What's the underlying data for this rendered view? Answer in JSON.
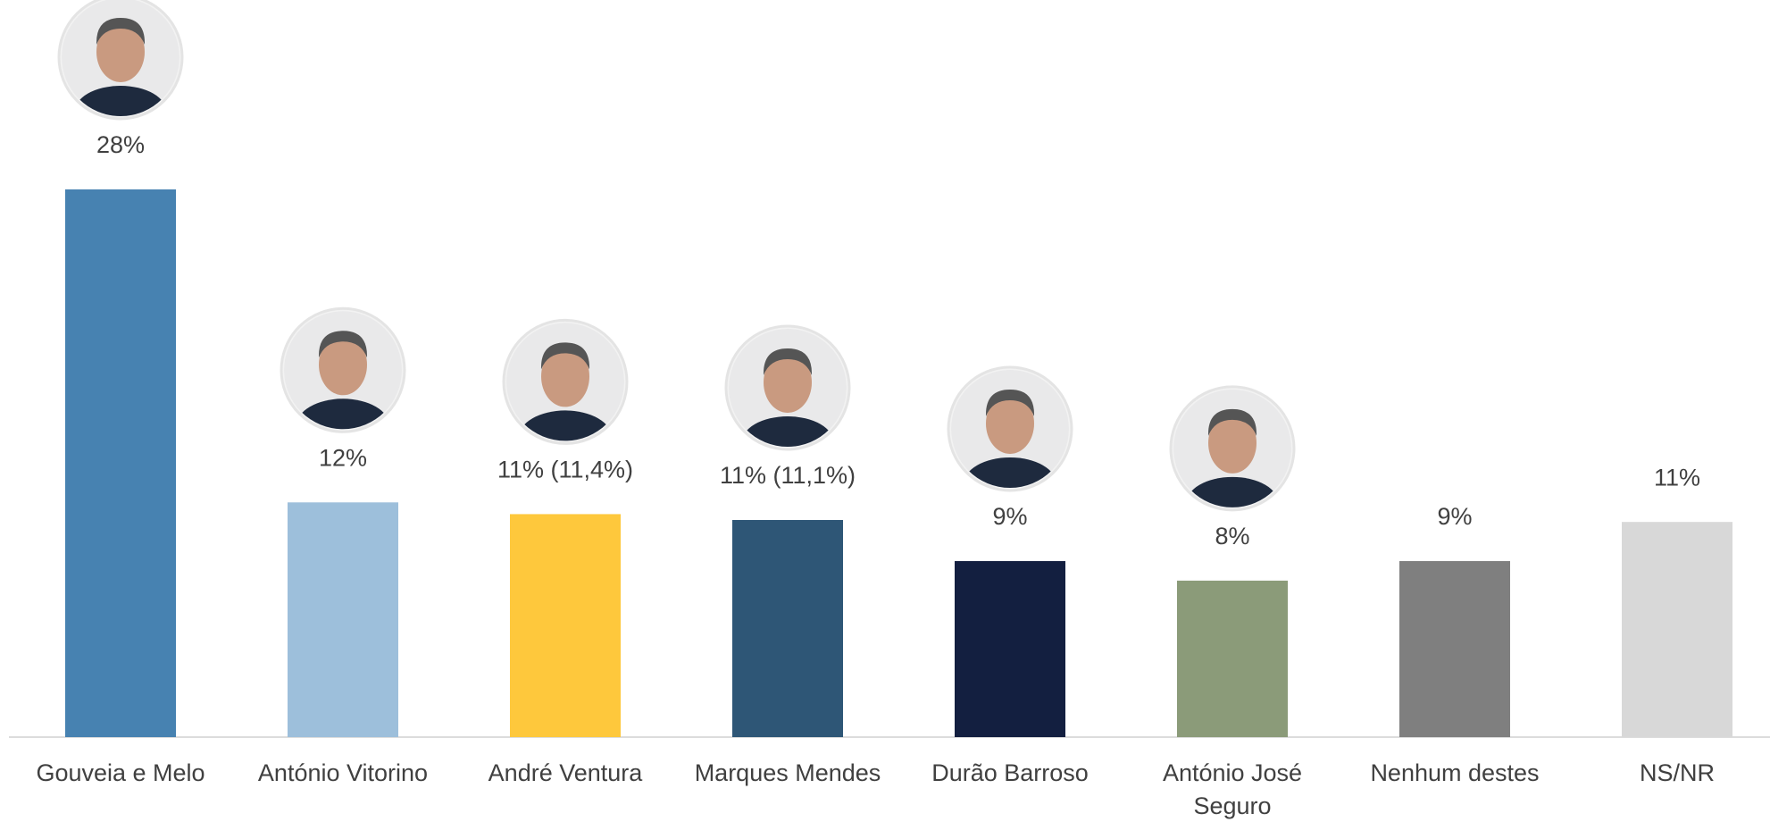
{
  "chart_data": {
    "type": "bar",
    "categories": [
      "Gouveia e Melo",
      "António Vitorino",
      "André Ventura",
      "Marques Mendes",
      "Durão Barroso",
      "António José Seguro",
      "Nenhum destes",
      "NS/NR"
    ],
    "values": [
      28,
      12,
      11.4,
      11.1,
      9,
      8,
      9,
      11
    ],
    "value_labels": [
      "28%",
      "12%",
      "11% (11,4%)",
      "11% (11,1%)",
      "9%",
      "8%",
      "9%",
      "11%"
    ],
    "colors": [
      "#4782b1",
      "#9dbfdb",
      "#fec83c",
      "#2e5676",
      "#131f40",
      "#8b9b79",
      "#7f7f7f",
      "#d8d8d8"
    ]
  }
}
